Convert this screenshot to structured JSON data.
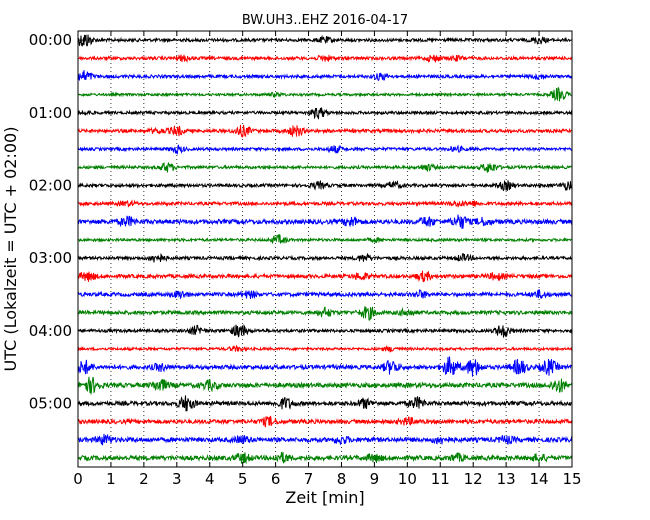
{
  "chart_data": {
    "type": "line",
    "title": "BW.UH3..EHZ 2016-04-17",
    "xlabel": "Zeit  [min]",
    "ylabel": "UTC (Lokalzeit = UTC + 02:00)",
    "xlim": [
      0,
      15
    ],
    "x_ticks": [
      "0",
      "1",
      "2",
      "3",
      "4",
      "5",
      "6",
      "7",
      "8",
      "9",
      "10",
      "11",
      "12",
      "13",
      "14",
      "15"
    ],
    "y_tick_labels": [
      "00:00",
      "01:00",
      "02:00",
      "03:00",
      "04:00",
      "05:00"
    ],
    "grid": "vertical dotted",
    "trace_colors": [
      "#000000",
      "#ff0000",
      "#0000ff",
      "#008000"
    ],
    "traces": [
      {
        "start_utc": "00:00",
        "color_index": 0,
        "bursts": [
          [
            0.2,
            7
          ],
          [
            7.5,
            2.5
          ],
          [
            14.0,
            3
          ]
        ],
        "noise": 1.5
      },
      {
        "start_utc": "00:15",
        "color_index": 1,
        "bursts": [
          [
            3.2,
            2.5
          ],
          [
            7.5,
            2.5
          ],
          [
            10.8,
            3
          ],
          [
            11.5,
            2
          ]
        ],
        "noise": 1.5
      },
      {
        "start_utc": "00:30",
        "color_index": 2,
        "bursts": [
          [
            0.2,
            5
          ],
          [
            9.2,
            3
          ],
          [
            14.0,
            2
          ]
        ],
        "noise": 1.5
      },
      {
        "start_utc": "00:45",
        "color_index": 3,
        "bursts": [
          [
            14.6,
            6
          ],
          [
            6.0,
            1.5
          ]
        ],
        "noise": 1.2
      },
      {
        "start_utc": "01:00",
        "color_index": 0,
        "bursts": [
          [
            7.3,
            5
          ],
          [
            0.2,
            1.5
          ]
        ],
        "noise": 1.4
      },
      {
        "start_utc": "01:15",
        "color_index": 1,
        "bursts": [
          [
            3.0,
            4
          ],
          [
            5.0,
            5
          ],
          [
            6.6,
            5
          ],
          [
            2.4,
            2
          ]
        ],
        "noise": 1.6
      },
      {
        "start_utc": "01:30",
        "color_index": 2,
        "bursts": [
          [
            3.0,
            3
          ],
          [
            7.8,
            3
          ],
          [
            11.5,
            2
          ]
        ],
        "noise": 1.4
      },
      {
        "start_utc": "01:45",
        "color_index": 3,
        "bursts": [
          [
            2.7,
            4
          ],
          [
            10.6,
            3
          ],
          [
            12.5,
            4.5
          ]
        ],
        "noise": 1.4
      },
      {
        "start_utc": "02:00",
        "color_index": 0,
        "bursts": [
          [
            7.3,
            3
          ],
          [
            9.6,
            3
          ],
          [
            13.0,
            4
          ],
          [
            14.9,
            4
          ]
        ],
        "noise": 1.5
      },
      {
        "start_utc": "02:15",
        "color_index": 1,
        "bursts": [
          [
            1.5,
            2
          ],
          [
            11.5,
            2
          ],
          [
            12.0,
            2
          ]
        ],
        "noise": 1.6
      },
      {
        "start_utc": "02:30",
        "color_index": 2,
        "bursts": [
          [
            1.5,
            4
          ],
          [
            8.3,
            4
          ],
          [
            10.6,
            4
          ],
          [
            11.6,
            6
          ],
          [
            12.3,
            3
          ]
        ],
        "noise": 2.2
      },
      {
        "start_utc": "02:45",
        "color_index": 3,
        "bursts": [
          [
            6.1,
            4
          ],
          [
            9.0,
            1.5
          ]
        ],
        "noise": 1.3
      },
      {
        "start_utc": "03:00",
        "color_index": 0,
        "bursts": [
          [
            2.4,
            4
          ],
          [
            8.7,
            3
          ],
          [
            11.7,
            3
          ]
        ],
        "noise": 1.5
      },
      {
        "start_utc": "03:15",
        "color_index": 1,
        "bursts": [
          [
            0.3,
            4
          ],
          [
            8.6,
            3
          ],
          [
            10.5,
            4
          ],
          [
            12.7,
            3
          ]
        ],
        "noise": 1.8
      },
      {
        "start_utc": "03:30",
        "color_index": 2,
        "bursts": [
          [
            3.1,
            3
          ],
          [
            5.2,
            3
          ],
          [
            10.4,
            3
          ],
          [
            14.0,
            3
          ]
        ],
        "noise": 1.8
      },
      {
        "start_utc": "03:45",
        "color_index": 3,
        "bursts": [
          [
            7.5,
            4
          ],
          [
            8.8,
            6
          ],
          [
            10.0,
            3
          ]
        ],
        "noise": 1.8
      },
      {
        "start_utc": "04:00",
        "color_index": 0,
        "bursts": [
          [
            3.6,
            4
          ],
          [
            4.9,
            6
          ],
          [
            12.9,
            6
          ]
        ],
        "noise": 1.5
      },
      {
        "start_utc": "04:15",
        "color_index": 1,
        "bursts": [
          [
            4.8,
            2
          ],
          [
            9.5,
            2
          ]
        ],
        "noise": 1.2
      },
      {
        "start_utc": "04:30",
        "color_index": 2,
        "bursts": [
          [
            0.2,
            6
          ],
          [
            2.5,
            3
          ],
          [
            9.5,
            6
          ],
          [
            11.3,
            9
          ],
          [
            12.0,
            8
          ],
          [
            13.4,
            7
          ],
          [
            14.3,
            7
          ]
        ],
        "noise": 2.0
      },
      {
        "start_utc": "04:45",
        "color_index": 3,
        "bursts": [
          [
            0.4,
            7
          ],
          [
            2.5,
            5
          ],
          [
            4.0,
            4
          ],
          [
            14.6,
            6
          ]
        ],
        "noise": 2.2
      },
      {
        "start_utc": "05:00",
        "color_index": 0,
        "bursts": [
          [
            3.3,
            7
          ],
          [
            6.3,
            5
          ],
          [
            8.7,
            4
          ],
          [
            10.3,
            5
          ]
        ],
        "noise": 2.0
      },
      {
        "start_utc": "05:15",
        "color_index": 1,
        "bursts": [
          [
            5.8,
            4
          ],
          [
            10.0,
            3
          ]
        ],
        "noise": 2.0
      },
      {
        "start_utc": "05:30",
        "color_index": 2,
        "bursts": [
          [
            0.8,
            4
          ],
          [
            5.0,
            3
          ],
          [
            8.0,
            3
          ],
          [
            11.0,
            3
          ],
          [
            13.0,
            3
          ]
        ],
        "noise": 2.2
      },
      {
        "start_utc": "05:45",
        "color_index": 3,
        "bursts": [
          [
            5.0,
            4
          ],
          [
            6.2,
            4
          ],
          [
            9.0,
            3
          ],
          [
            11.5,
            3
          ],
          [
            14.0,
            3
          ]
        ],
        "noise": 2.2
      }
    ]
  }
}
